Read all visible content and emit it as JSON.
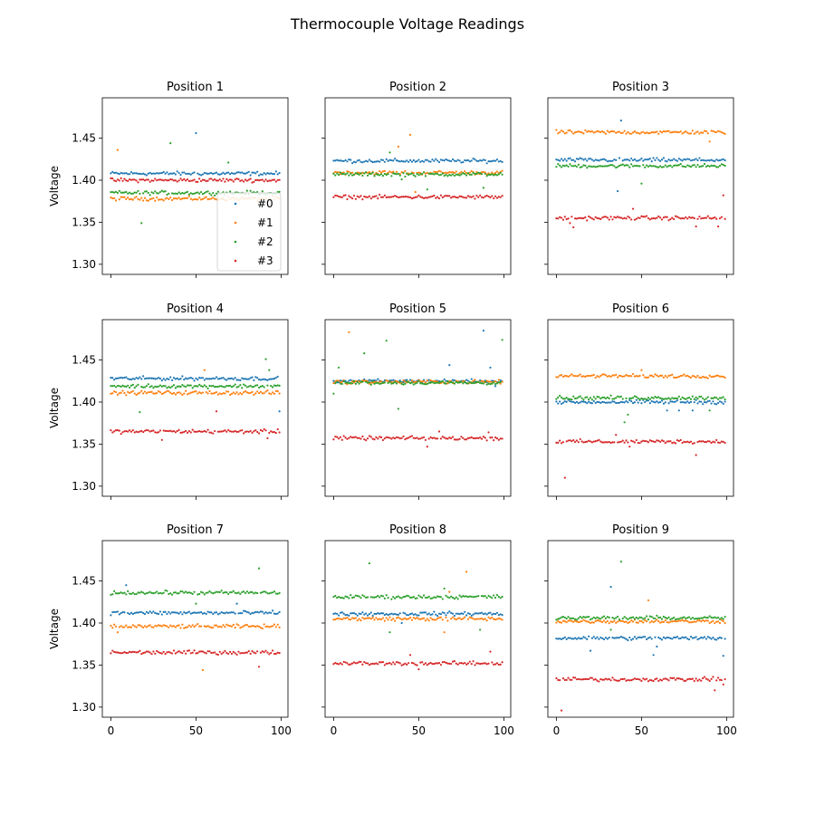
{
  "figure": {
    "title": "Thermocouple Voltage Readings"
  },
  "colors": {
    "#0": "#1f77b4",
    "#1": "#ff7f0e",
    "#2": "#2ca02c",
    "#3": "#d62728"
  },
  "chart_data": {
    "type": "scatter",
    "title": "Thermocouple Voltage Readings",
    "ylabel": "Voltage",
    "xlim": [
      -5,
      104
    ],
    "ylim": [
      1.288,
      1.498
    ],
    "x_ticks": [
      0,
      50,
      100
    ],
    "y_ticks": [
      1.3,
      1.35,
      1.4,
      1.45
    ],
    "y_tick_labels": [
      "1.30",
      "1.35",
      "1.40",
      "1.45"
    ],
    "shared_axes": true,
    "grid": false,
    "legend": {
      "placement": "lower right",
      "panel": "Position 1",
      "entries": [
        "#0",
        "#1",
        "#2",
        "#3"
      ]
    },
    "x": "integers 0..99",
    "panels": [
      {
        "title": "Position 1",
        "series": [
          {
            "name": "#0",
            "baseline": 1.408,
            "outliers": [
              [
                50,
                1.456
              ]
            ]
          },
          {
            "name": "#1",
            "baseline": 1.378,
            "outliers": [
              [
                4,
                1.436
              ]
            ]
          },
          {
            "name": "#2",
            "baseline": 1.385,
            "outliers": [
              [
                18,
                1.349
              ],
              [
                35,
                1.444
              ],
              [
                69,
                1.421
              ]
            ]
          },
          {
            "name": "#3",
            "baseline": 1.4,
            "outliers": []
          }
        ]
      },
      {
        "title": "Position 2",
        "series": [
          {
            "name": "#0",
            "baseline": 1.423,
            "outliers": []
          },
          {
            "name": "#1",
            "baseline": 1.409,
            "outliers": [
              [
                38,
                1.44
              ],
              [
                45,
                1.454
              ],
              [
                48,
                1.386
              ]
            ]
          },
          {
            "name": "#2",
            "baseline": 1.407,
            "outliers": [
              [
                33,
                1.433
              ],
              [
                40,
                1.401
              ],
              [
                55,
                1.389
              ],
              [
                88,
                1.391
              ]
            ]
          },
          {
            "name": "#3",
            "baseline": 1.38,
            "outliers": []
          }
        ]
      },
      {
        "title": "Position 3",
        "series": [
          {
            "name": "#0",
            "baseline": 1.424,
            "outliers": [
              [
                38,
                1.471
              ],
              [
                36,
                1.387
              ]
            ]
          },
          {
            "name": "#1",
            "baseline": 1.457,
            "outliers": [
              [
                90,
                1.446
              ]
            ]
          },
          {
            "name": "#2",
            "baseline": 1.417,
            "outliers": [
              [
                50,
                1.396
              ]
            ]
          },
          {
            "name": "#3",
            "baseline": 1.355,
            "outliers": [
              [
                8,
                1.349
              ],
              [
                10,
                1.344
              ],
              [
                45,
                1.366
              ],
              [
                82,
                1.345
              ],
              [
                95,
                1.345
              ],
              [
                98,
                1.382
              ]
            ]
          }
        ]
      },
      {
        "title": "Position 4",
        "series": [
          {
            "name": "#0",
            "baseline": 1.428,
            "outliers": [
              [
                99,
                1.389
              ]
            ]
          },
          {
            "name": "#1",
            "baseline": 1.411,
            "outliers": [
              [
                55,
                1.438
              ]
            ]
          },
          {
            "name": "#2",
            "baseline": 1.419,
            "outliers": [
              [
                17,
                1.388
              ],
              [
                91,
                1.451
              ],
              [
                93,
                1.438
              ]
            ]
          },
          {
            "name": "#3",
            "baseline": 1.365,
            "outliers": [
              [
                30,
                1.355
              ],
              [
                62,
                1.389
              ],
              [
                92,
                1.357
              ]
            ]
          }
        ]
      },
      {
        "title": "Position 5",
        "series": [
          {
            "name": "#0",
            "baseline": 1.425,
            "outliers": [
              [
                88,
                1.485
              ],
              [
                92,
                1.441
              ],
              [
                68,
                1.444
              ],
              [
                95,
                1.419
              ]
            ]
          },
          {
            "name": "#1",
            "baseline": 1.424,
            "outliers": [
              [
                9,
                1.483
              ]
            ]
          },
          {
            "name": "#2",
            "baseline": 1.423,
            "outliers": [
              [
                0,
                1.41
              ],
              [
                3,
                1.441
              ],
              [
                18,
                1.458
              ],
              [
                31,
                1.473
              ],
              [
                38,
                1.392
              ],
              [
                99,
                1.474
              ]
            ]
          },
          {
            "name": "#3",
            "baseline": 1.357,
            "outliers": [
              [
                55,
                1.347
              ],
              [
                62,
                1.365
              ],
              [
                91,
                1.364
              ]
            ]
          }
        ]
      },
      {
        "title": "Position 6",
        "series": [
          {
            "name": "#0",
            "baseline": 1.4,
            "outliers": [
              [
                65,
                1.39
              ],
              [
                72,
                1.39
              ],
              [
                80,
                1.39
              ]
            ]
          },
          {
            "name": "#1",
            "baseline": 1.431,
            "outliers": [
              [
                50,
                1.438
              ]
            ]
          },
          {
            "name": "#2",
            "baseline": 1.405,
            "outliers": [
              [
                40,
                1.376
              ],
              [
                42,
                1.385
              ],
              [
                90,
                1.39
              ]
            ]
          },
          {
            "name": "#3",
            "baseline": 1.353,
            "outliers": [
              [
                5,
                1.31
              ],
              [
                35,
                1.361
              ],
              [
                43,
                1.347
              ],
              [
                82,
                1.337
              ]
            ]
          }
        ]
      },
      {
        "title": "Position 7",
        "series": [
          {
            "name": "#0",
            "baseline": 1.412,
            "outliers": [
              [
                9,
                1.445
              ],
              [
                74,
                1.423
              ]
            ]
          },
          {
            "name": "#1",
            "baseline": 1.396,
            "outliers": [
              [
                4,
                1.389
              ],
              [
                54,
                1.344
              ]
            ]
          },
          {
            "name": "#2",
            "baseline": 1.436,
            "outliers": [
              [
                50,
                1.423
              ],
              [
                87,
                1.465
              ]
            ]
          },
          {
            "name": "#3",
            "baseline": 1.365,
            "outliers": [
              [
                87,
                1.348
              ]
            ]
          }
        ]
      },
      {
        "title": "Position 8",
        "series": [
          {
            "name": "#0",
            "baseline": 1.411,
            "outliers": [
              [
                40,
                1.4
              ]
            ]
          },
          {
            "name": "#1",
            "baseline": 1.405,
            "outliers": [
              [
                78,
                1.461
              ],
              [
                65,
                1.389
              ],
              [
                68,
                1.437
              ]
            ]
          },
          {
            "name": "#2",
            "baseline": 1.431,
            "outliers": [
              [
                21,
                1.471
              ],
              [
                33,
                1.389
              ],
              [
                65,
                1.441
              ],
              [
                86,
                1.392
              ]
            ]
          },
          {
            "name": "#3",
            "baseline": 1.352,
            "outliers": [
              [
                50,
                1.345
              ],
              [
                92,
                1.366
              ],
              [
                45,
                1.362
              ]
            ]
          }
        ]
      },
      {
        "title": "Position 9",
        "series": [
          {
            "name": "#0",
            "baseline": 1.382,
            "outliers": [
              [
                32,
                1.443
              ],
              [
                20,
                1.367
              ],
              [
                57,
                1.362
              ],
              [
                59,
                1.372
              ],
              [
                98,
                1.361
              ]
            ]
          },
          {
            "name": "#1",
            "baseline": 1.402,
            "outliers": [
              [
                54,
                1.427
              ]
            ]
          },
          {
            "name": "#2",
            "baseline": 1.406,
            "outliers": [
              [
                38,
                1.473
              ],
              [
                32,
                1.392
              ]
            ]
          },
          {
            "name": "#3",
            "baseline": 1.333,
            "outliers": [
              [
                3,
                1.296
              ],
              [
                93,
                1.32
              ],
              [
                98,
                1.327
              ]
            ]
          }
        ]
      }
    ]
  }
}
